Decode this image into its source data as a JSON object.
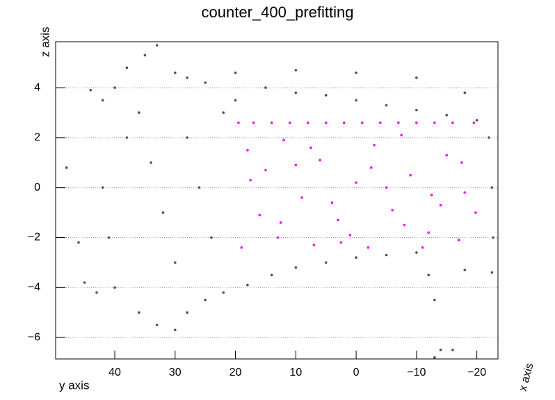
{
  "chart_data": {
    "type": "scatter",
    "title": "counter_400_prefitting",
    "x_label": "y axis",
    "y_label": "z axis",
    "z_label": "x axis",
    "xlim": [
      49.8,
      -23.5
    ],
    "xticks": [
      40,
      30,
      20,
      10,
      0,
      {
        "value": -10,
        "label": "−10"
      },
      {
        "value": -20,
        "label": "−20"
      }
    ],
    "ylim": [
      -6.86,
      5.84
    ],
    "yticks": [
      {
        "value": -6,
        "label": "−6"
      },
      {
        "value": -4,
        "label": "−4"
      },
      {
        "value": -2,
        "label": "−2"
      },
      0,
      2,
      4
    ],
    "grid": true,
    "series": [
      {
        "color": "#505050",
        "x": [
          33,
          35,
          38,
          40,
          42,
          44,
          38,
          42,
          41,
          40,
          36,
          33,
          30,
          28,
          25,
          22,
          18,
          14,
          10,
          5,
          0,
          -5,
          -10,
          36,
          34,
          32,
          30,
          28,
          26,
          24,
          22,
          20,
          25,
          30,
          28,
          15,
          10,
          5,
          0,
          -5,
          -10,
          -15,
          -20,
          -22,
          -22.5,
          -22.7,
          -22.5,
          20,
          10,
          0,
          -10,
          -18,
          48,
          46,
          45,
          43,
          -13,
          -14,
          -13,
          -16,
          -12,
          -18
        ],
        "values": [
          5.7,
          5.3,
          4.8,
          4.0,
          3.5,
          3.9,
          2.0,
          0.0,
          -2.0,
          -4.0,
          -5.0,
          -5.5,
          -5.7,
          -5.0,
          -4.5,
          -4.2,
          -3.9,
          -3.5,
          -3.2,
          -3.0,
          -2.8,
          -2.7,
          -2.6,
          3.0,
          1.0,
          -1.0,
          -3.0,
          2.0,
          0.0,
          -2.0,
          3.0,
          3.5,
          4.2,
          4.6,
          4.4,
          4.0,
          3.8,
          3.7,
          3.5,
          3.3,
          3.1,
          2.9,
          2.7,
          2.0,
          0.0,
          -2.0,
          -3.4,
          4.6,
          4.7,
          4.6,
          4.4,
          3.8,
          0.8,
          -2.2,
          -3.8,
          -4.2,
          -4.5,
          -6.5,
          -6.8,
          -6.5,
          -3.5,
          -3.3
        ]
      },
      {
        "color": "#ff00ff",
        "x": [
          19.5,
          17,
          14,
          11,
          8,
          5,
          2,
          -1,
          -4,
          -7,
          -10,
          -13,
          -16,
          -19.5,
          18,
          15,
          12,
          9,
          6,
          3,
          0,
          -3,
          -6,
          -9,
          -12,
          -15,
          -18,
          19,
          16,
          13,
          10,
          7,
          4,
          1,
          -2,
          -5,
          -8,
          -11,
          -14,
          -17,
          -19.8,
          17.5,
          12.5,
          7.5,
          2.5,
          -2.5,
          -7.5,
          -12.5,
          -17.5
        ],
        "values": [
          2.6,
          2.6,
          2.6,
          2.6,
          2.6,
          2.6,
          2.6,
          2.6,
          2.6,
          2.6,
          2.6,
          2.6,
          2.6,
          2.6,
          1.5,
          0.7,
          1.9,
          -0.4,
          1.1,
          -1.3,
          0.2,
          1.7,
          -0.9,
          0.5,
          -1.8,
          1.3,
          -0.2,
          -2.4,
          -1.1,
          -2.0,
          0.9,
          -2.3,
          -0.6,
          -1.9,
          -2.4,
          0.0,
          -1.5,
          -2.4,
          -0.7,
          -2.1,
          -1.0,
          0.3,
          -1.4,
          1.6,
          -2.2,
          0.8,
          2.1,
          -0.3,
          1.0
        ]
      }
    ]
  }
}
